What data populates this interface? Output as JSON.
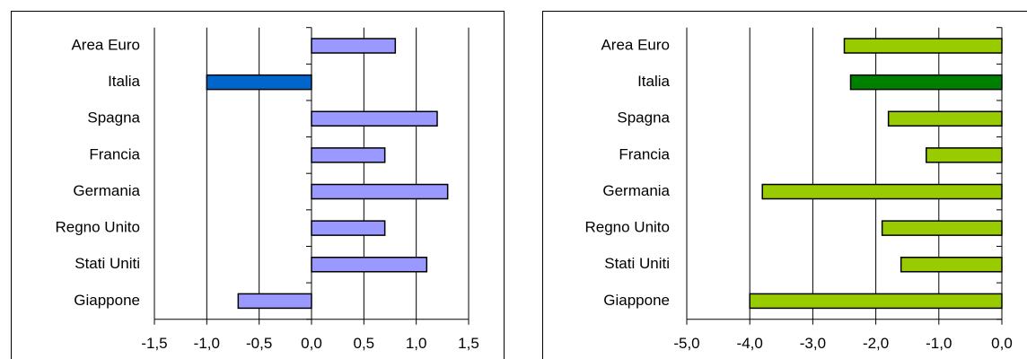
{
  "chart_data": [
    {
      "type": "barh",
      "categories": [
        "Area Euro",
        "Italia",
        "Spagna",
        "Francia",
        "Germania",
        "Regno Unito",
        "Stati Uniti",
        "Giappone"
      ],
      "values": [
        0.8,
        -1.0,
        1.2,
        0.7,
        1.3,
        0.7,
        1.1,
        -0.7
      ],
      "colors": [
        "#9999ff",
        "#0066cc",
        "#9999ff",
        "#9999ff",
        "#9999ff",
        "#9999ff",
        "#9999ff",
        "#9999ff"
      ],
      "xlim": [
        -1.5,
        1.5
      ],
      "xticks": [
        {
          "value": -1.5,
          "label": "-1,5"
        },
        {
          "value": -1.0,
          "label": "-1,0"
        },
        {
          "value": -0.5,
          "label": "-0,5"
        },
        {
          "value": 0,
          "label": "0,0"
        },
        {
          "value": 0.5,
          "label": "0,5"
        },
        {
          "value": 1.0,
          "label": "1,0"
        },
        {
          "value": 1.5,
          "label": "1,5"
        }
      ],
      "grid": true
    },
    {
      "type": "barh",
      "categories": [
        "Area Euro",
        "Italia",
        "Spagna",
        "Francia",
        "Germania",
        "Regno Unito",
        "Stati Uniti",
        "Giappone"
      ],
      "values": [
        -2.5,
        -2.4,
        -1.8,
        -1.2,
        -3.8,
        -1.9,
        -1.6,
        -4.0
      ],
      "colors": [
        "#99cc00",
        "#008000",
        "#99cc00",
        "#99cc00",
        "#99cc00",
        "#99cc00",
        "#99cc00",
        "#99cc00"
      ],
      "xlim": [
        -5,
        0
      ],
      "xticks": [
        {
          "value": -5,
          "label": "-5,0"
        },
        {
          "value": -4,
          "label": "-4,0"
        },
        {
          "value": -3,
          "label": "-3,0"
        },
        {
          "value": -2,
          "label": "-2,0"
        },
        {
          "value": -1,
          "label": "-1,0"
        },
        {
          "value": 0,
          "label": "0,0"
        }
      ],
      "grid": true
    }
  ]
}
